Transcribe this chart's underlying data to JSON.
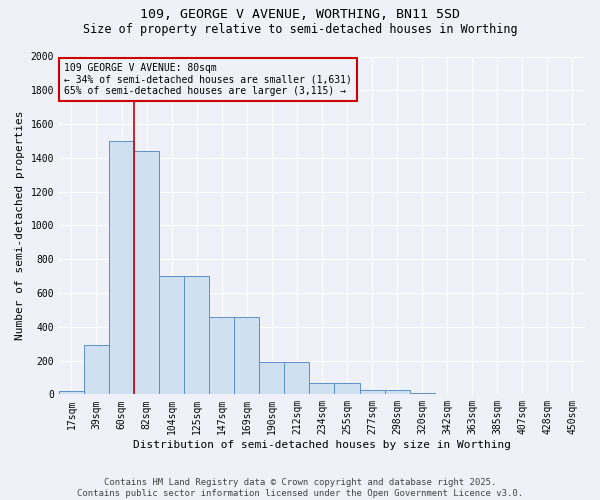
{
  "title1": "109, GEORGE V AVENUE, WORTHING, BN11 5SD",
  "title2": "Size of property relative to semi-detached houses in Worthing",
  "xlabel": "Distribution of semi-detached houses by size in Worthing",
  "ylabel": "Number of semi-detached properties",
  "categories": [
    "17sqm",
    "39sqm",
    "60sqm",
    "82sqm",
    "104sqm",
    "125sqm",
    "147sqm",
    "169sqm",
    "190sqm",
    "212sqm",
    "234sqm",
    "255sqm",
    "277sqm",
    "298sqm",
    "320sqm",
    "342sqm",
    "363sqm",
    "385sqm",
    "407sqm",
    "428sqm",
    "450sqm"
  ],
  "values": [
    20,
    290,
    1500,
    1440,
    700,
    700,
    460,
    460,
    190,
    190,
    70,
    70,
    25,
    25,
    5,
    0,
    0,
    0,
    0,
    0,
    0
  ],
  "bar_color": "#cfe0f0",
  "bar_edge_color": "#5b8fc9",
  "vline_color": "#cc0000",
  "vline_pos": 2.5,
  "annotation_text": "109 GEORGE V AVENUE: 80sqm\n← 34% of semi-detached houses are smaller (1,631)\n65% of semi-detached houses are larger (3,115) →",
  "annotation_box_color": "#cc0000",
  "ylim": [
    0,
    2000
  ],
  "yticks": [
    0,
    200,
    400,
    600,
    800,
    1000,
    1200,
    1400,
    1600,
    1800,
    2000
  ],
  "footer": "Contains HM Land Registry data © Crown copyright and database right 2025.\nContains public sector information licensed under the Open Government Licence v3.0.",
  "bg_color": "#eef2f8",
  "grid_color": "#ffffff",
  "title_fontsize": 9.5,
  "subtitle_fontsize": 8.5,
  "axis_label_fontsize": 8,
  "tick_fontsize": 7,
  "annot_fontsize": 7,
  "footer_fontsize": 6.5
}
